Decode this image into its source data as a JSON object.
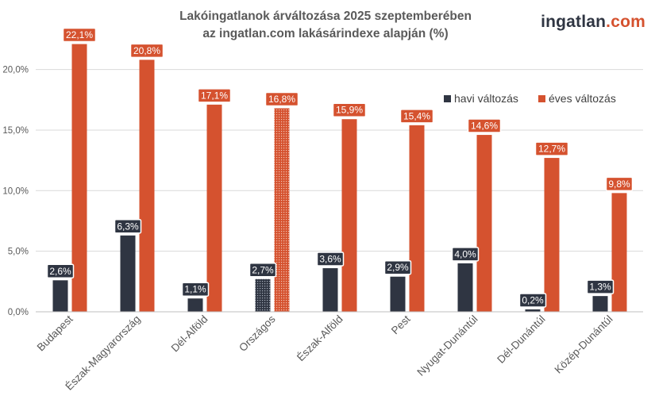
{
  "title": {
    "line1": "Lakóingatlanok árváltozása 2025 szeptemberében",
    "line2": "az ingatlan.com lakásárindexe alapján (%)"
  },
  "logo": {
    "part1": "ingatlan",
    "part2": ".com"
  },
  "colors": {
    "monthly": "#2f3542",
    "yearly": "#d5522f",
    "axis_text": "#595959",
    "grid": "#d9d9d9"
  },
  "chart_data": {
    "type": "bar",
    "title": "Lakóingatlanok árváltozása 2025 szeptemberében az ingatlan.com lakásárindexe alapján (%)",
    "categories": [
      "Budapest",
      "Észak-Magyarország",
      "Dél-Alföld",
      "Országos",
      "Észak-Alföld",
      "Pest",
      "Nyugat-Dunántúl",
      "Dél-Dunántúl",
      "Közép-Dunántúl"
    ],
    "highlighted_category": "Országos",
    "series": [
      {
        "name": "havi változás",
        "color": "#2f3542",
        "values": [
          2.6,
          6.3,
          1.1,
          2.7,
          3.6,
          2.9,
          4.0,
          0.2,
          1.3
        ],
        "labels": [
          "2,6%",
          "6,3%",
          "1,1%",
          "2,7%",
          "3,6%",
          "2,9%",
          "4,0%",
          "0,2%",
          "1,3%"
        ]
      },
      {
        "name": "éves változás",
        "color": "#d5522f",
        "values": [
          22.1,
          20.8,
          17.1,
          16.8,
          15.9,
          15.4,
          14.6,
          12.7,
          9.8
        ],
        "labels": [
          "22,1%",
          "20,8%",
          "17,1%",
          "16,8%",
          "15,9%",
          "15,4%",
          "14,6%",
          "12,7%",
          "9,8%"
        ]
      }
    ],
    "y_ticks": [
      0,
      5,
      10,
      15,
      20
    ],
    "y_tick_labels": [
      "0,0%",
      "5,0%",
      "10,0%",
      "15,0%",
      "20,0%"
    ],
    "ylim": [
      0,
      22.1
    ],
    "grid": true,
    "legend": "top-right",
    "xlabel": "",
    "ylabel": ""
  }
}
